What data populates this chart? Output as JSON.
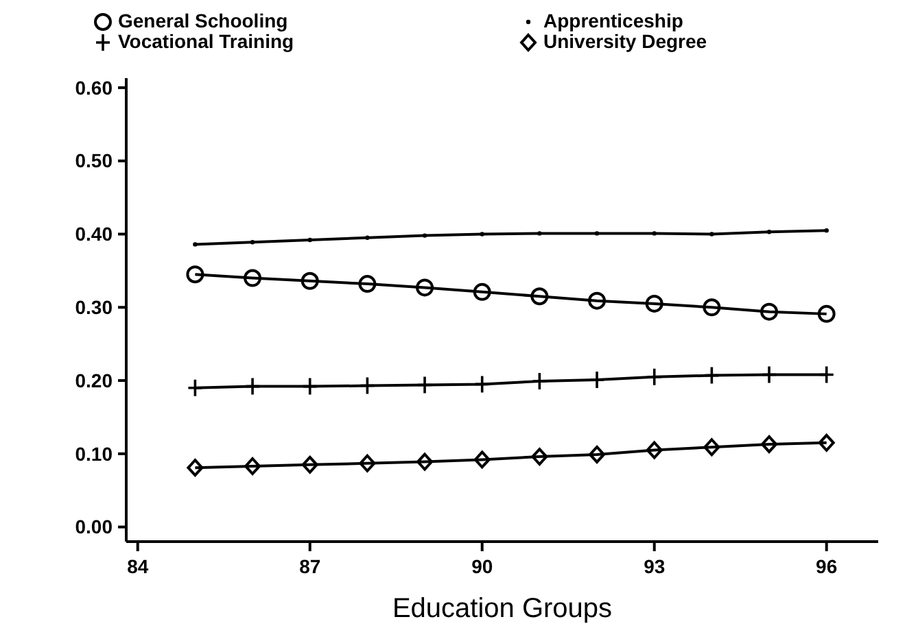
{
  "chart_data": {
    "type": "line",
    "xlabel": "Education Groups",
    "x": [
      85,
      86,
      87,
      88,
      89,
      90,
      91,
      92,
      93,
      94,
      95,
      96
    ],
    "xlim": [
      83.8,
      96.9
    ],
    "xticks": [
      84,
      87,
      90,
      93,
      96
    ],
    "ylim": [
      -0.02,
      0.613
    ],
    "yticks": [
      {
        "value": 0,
        "label": "0.00"
      },
      {
        "value": 0.1,
        "label": "0.10"
      },
      {
        "value": 0.2,
        "label": "0.20"
      },
      {
        "value": 0.3,
        "label": "0.30"
      },
      {
        "value": 0.4,
        "label": "0.40"
      },
      {
        "value": 0.5,
        "label": "0.50"
      },
      {
        "value": 0.6,
        "label": "0.60"
      }
    ],
    "grid": false,
    "legend": "top",
    "line_style": "solid",
    "series": [
      {
        "name": "General Schooling",
        "color": "#000000",
        "marker": "circle",
        "values": [
          0.345,
          0.34,
          0.336,
          0.332,
          0.327,
          0.321,
          0.315,
          0.309,
          0.305,
          0.3,
          0.294,
          0.291
        ]
      },
      {
        "name": "Apprenticeship",
        "color": "#000000",
        "marker": "dot",
        "values": [
          0.386,
          0.389,
          0.392,
          0.395,
          0.398,
          0.4,
          0.401,
          0.401,
          0.401,
          0.4,
          0.403,
          0.405
        ]
      },
      {
        "name": "Vocational Training",
        "color": "#000000",
        "marker": "cross",
        "values": [
          0.19,
          0.192,
          0.192,
          0.193,
          0.194,
          0.195,
          0.199,
          0.201,
          0.205,
          0.207,
          0.208,
          0.208
        ]
      },
      {
        "name": "University Degree",
        "color": "#000000",
        "marker": "diamond",
        "values": [
          0.081,
          0.083,
          0.085,
          0.087,
          0.089,
          0.092,
          0.096,
          0.099,
          0.105,
          0.109,
          0.113,
          0.115
        ]
      }
    ]
  }
}
